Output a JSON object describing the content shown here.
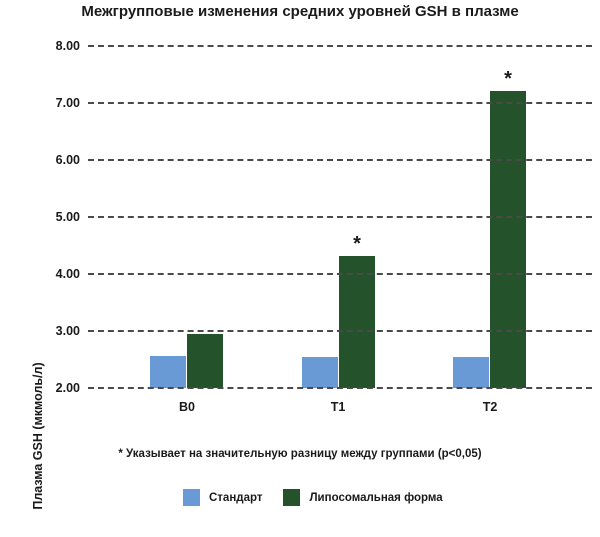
{
  "chart_data": {
    "type": "bar",
    "title": "Межгрупповые изменения средних уровней GSH в плазме",
    "xlabel": "",
    "ylabel": "Плазма  GSH (мкмоль/л)",
    "categories": [
      "B0",
      "T1",
      "T2"
    ],
    "series": [
      {
        "name": "Стандарт",
        "color": "#6a9ad6",
        "values": [
          2.56,
          2.55,
          2.55
        ]
      },
      {
        "name": "Липосомальная форма",
        "color": "#24522b",
        "values": [
          2.95,
          4.32,
          7.21
        ]
      }
    ],
    "significance": [
      false,
      true,
      true
    ],
    "ylim": [
      2.0,
      8.0
    ],
    "yticks": [
      "8.00",
      "7.00",
      "6.00",
      "5.00",
      "4.00",
      "3.00",
      "2.00"
    ],
    "grid": "dashed horizontal",
    "legend_position": "bottom",
    "annotation": "* Указывает на значительную разницу между группами (p<0,05)"
  },
  "title": "Межгрупповые изменения средних уровней GSH в плазме",
  "ylabel": "Плазма  GSH (мкмоль/л)",
  "yticks": [
    "8.00",
    "7.00",
    "6.00",
    "5.00",
    "4.00",
    "3.00",
    "2.00"
  ],
  "categories": [
    "B0",
    "T1",
    "T2"
  ],
  "star": "*",
  "footnote": "* Указывает на значительную разницу между группами (p<0,05)",
  "legend": [
    {
      "label": "Стандарт",
      "color": "#6a9ad6"
    },
    {
      "label": "Липосомальная форма",
      "color": "#24522b"
    }
  ]
}
